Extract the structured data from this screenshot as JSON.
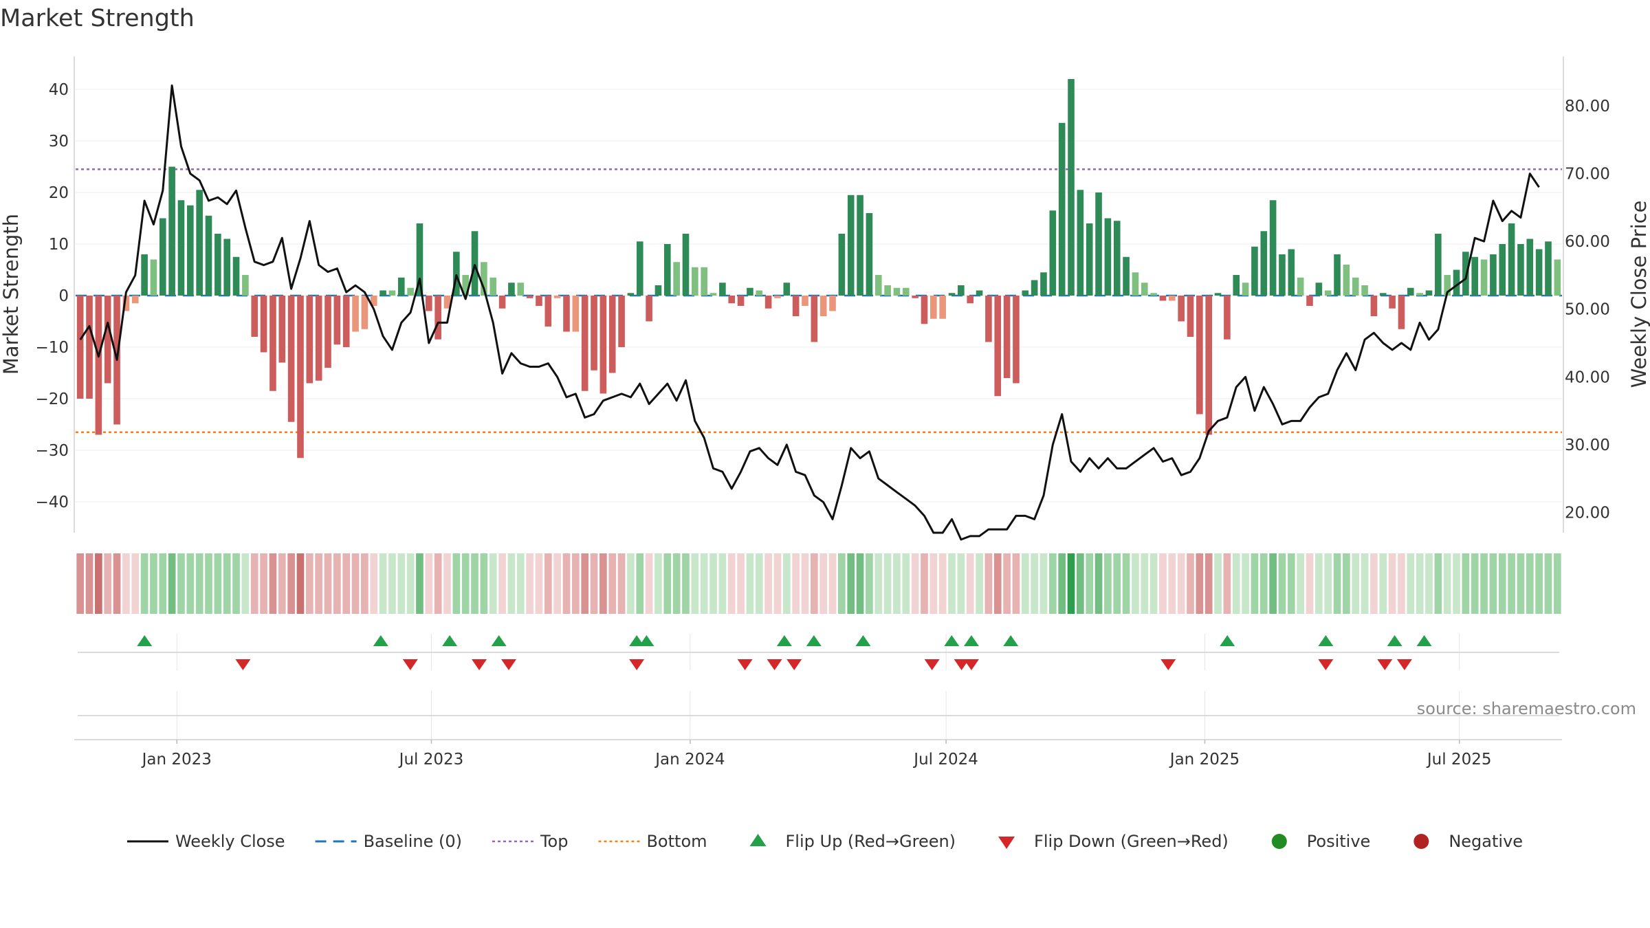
{
  "chart_data": {
    "type": "bar",
    "title": "Market Strength",
    "ylabel_left": "Market Strength",
    "ylabel_right": "Weekly Close Price",
    "left_ylim": [
      -46,
      46
    ],
    "right_ylim": [
      17,
      87
    ],
    "left_ticks": [
      40,
      30,
      20,
      10,
      0,
      -10,
      -20,
      -30,
      -40
    ],
    "left_tick_labels": [
      "40",
      "30",
      "20",
      "10",
      "0",
      "−10",
      "−20",
      "−30",
      "−40"
    ],
    "right_ticks": [
      80,
      70,
      60,
      50,
      40,
      30,
      20
    ],
    "right_tick_labels": [
      "80.00",
      "70.00",
      "60.00",
      "50.00",
      "40.00",
      "30.00",
      "20.00"
    ],
    "x_start": "2022-10-21",
    "x_end": "2025-09-12",
    "x_ticks": [
      {
        "date": "2023-01-01",
        "label": "Jan 2023"
      },
      {
        "date": "2023-07-01",
        "label": "Jul 2023"
      },
      {
        "date": "2024-01-01",
        "label": "Jan 2024"
      },
      {
        "date": "2024-07-01",
        "label": "Jul 2024"
      },
      {
        "date": "2025-01-01",
        "label": "Jan 2025"
      },
      {
        "date": "2025-07-01",
        "label": "Jul 2025"
      }
    ],
    "top_level": 24.5,
    "bottom_level": -26.5,
    "baseline": 0,
    "strength": [
      -20,
      -20,
      -27,
      -17,
      -25,
      -3,
      -1.5,
      8,
      7,
      15,
      25,
      18.5,
      17.5,
      20.5,
      15.5,
      12,
      11,
      7.5,
      4,
      -8,
      -11,
      -18.5,
      -13,
      -24.5,
      -31.5,
      -17,
      -16.5,
      -14,
      -9.5,
      -10,
      -7,
      -6.5,
      -2,
      1,
      1,
      3.5,
      1.5,
      14,
      -3,
      -8.5,
      -2.5,
      8.5,
      4,
      12.5,
      6.5,
      3.5,
      -2.5,
      2.5,
      2.5,
      -0.5,
      -2,
      -6,
      -0.5,
      -7,
      -7,
      -18.5,
      -14.5,
      -19,
      -15,
      -10,
      0.5,
      10.5,
      -5,
      2,
      10,
      6.5,
      12,
      5.5,
      5.5,
      0.5,
      2.5,
      -1.5,
      -2,
      1.5,
      1,
      -2.5,
      -0.5,
      2.5,
      -4,
      -2,
      -9,
      -4,
      -3,
      12,
      19.5,
      19.5,
      16,
      4,
      2,
      1.5,
      1.5,
      -0.5,
      -5.5,
      -4.5,
      -4.5,
      0.5,
      2,
      -1.5,
      1,
      -9,
      -19.5,
      -16,
      -17,
      1,
      3,
      4.5,
      16.5,
      33.5,
      42,
      20.5,
      14,
      20,
      15,
      14.5,
      7.5,
      4.5,
      2.5,
      0.5,
      -1,
      -1,
      -5,
      -8,
      -23,
      -27,
      0.5,
      -8.5,
      4,
      2.5,
      9.5,
      12.5,
      18.5,
      8,
      9,
      3.5,
      -2,
      2.5,
      1,
      8,
      6,
      3.5,
      2,
      -4,
      0.5,
      -2.5,
      -6.5,
      1.5,
      0.5,
      1,
      12,
      4,
      5,
      8.5,
      7.5,
      7,
      8,
      10,
      14,
      10,
      11,
      9,
      10.5,
      7
    ],
    "close": [
      45.5,
      47.5,
      43,
      48,
      42.5,
      52.5,
      55,
      66,
      62.5,
      67.5,
      83,
      74,
      70,
      69,
      66,
      66.5,
      65.5,
      67.5,
      62,
      57,
      56.5,
      57,
      60.5,
      53,
      57.5,
      63,
      56.5,
      55.5,
      56,
      52.5,
      53.5,
      52.5,
      50,
      46,
      44,
      48,
      49.5,
      54.5,
      45,
      48,
      48,
      55,
      51.5,
      56.5,
      53,
      48,
      40.5,
      43.5,
      42,
      41.5,
      41.5,
      42,
      40,
      37,
      37.5,
      34,
      34.5,
      36.5,
      37,
      37.5,
      37,
      39,
      36,
      37.5,
      39,
      36.5,
      39.5,
      33.5,
      31,
      26.5,
      26,
      23.5,
      26,
      29,
      29.5,
      28,
      27,
      30,
      26,
      25.5,
      22.5,
      21.5,
      19,
      24,
      29.5,
      28,
      29,
      25,
      24,
      23,
      22,
      21,
      19.5,
      17,
      17,
      19,
      16,
      16.5,
      16.5,
      17.5,
      17.5,
      17.5,
      19.5,
      19.5,
      19,
      22.5,
      30,
      34.5,
      27.5,
      26,
      28,
      26.5,
      28,
      26.5,
      26.5,
      27.5,
      28.5,
      29.5,
      27.5,
      28,
      25.5,
      26,
      28,
      32,
      33.5,
      34,
      38.5,
      40,
      35,
      38.5,
      36,
      33,
      33.5,
      33.5,
      35.5,
      37,
      37.5,
      41,
      43.5,
      41,
      45.5,
      46.5,
      45,
      44,
      45,
      44,
      48,
      45.5,
      47,
      52.5,
      53.5,
      54.5,
      60.5,
      60,
      66,
      63,
      64.5,
      63.5,
      70,
      68
    ],
    "heat_cells": [
      -3,
      -3,
      -4,
      -2,
      -3,
      -1,
      -1,
      2,
      2,
      2,
      3,
      2,
      2,
      2,
      2,
      2,
      2,
      2,
      1,
      -2,
      -2,
      -3,
      -2,
      -3,
      -4,
      -2,
      -2,
      -2,
      -2,
      -2,
      -2,
      -2,
      -1,
      1,
      1,
      1,
      1,
      3,
      -1,
      -2,
      -1,
      2,
      2,
      2,
      2,
      1,
      -1,
      1,
      1,
      -1,
      -1,
      -2,
      -1,
      -2,
      -2,
      -3,
      -2,
      -3,
      -2,
      -2,
      1,
      2,
      -1,
      1,
      2,
      2,
      2,
      1,
      1,
      1,
      1,
      -1,
      -1,
      1,
      1,
      -1,
      -1,
      1,
      -1,
      -1,
      -2,
      -1,
      -1,
      2,
      3,
      3,
      2,
      1,
      1,
      1,
      1,
      -1,
      -2,
      -1,
      -1,
      1,
      1,
      -1,
      1,
      -2,
      -3,
      -2,
      -2,
      1,
      1,
      1,
      2,
      3,
      4,
      3,
      2,
      3,
      2,
      2,
      2,
      1,
      1,
      1,
      -1,
      -1,
      -1,
      -2,
      -3,
      -3,
      1,
      -2,
      1,
      1,
      2,
      2,
      3,
      2,
      2,
      1,
      -1,
      1,
      1,
      2,
      2,
      1,
      1,
      -1,
      1,
      -1,
      -1,
      1,
      1,
      1,
      2,
      1,
      1,
      2,
      2,
      2,
      2,
      2,
      2,
      2,
      2,
      2,
      2,
      2
    ],
    "flip_up_dates": [
      "2022-12-09",
      "2023-05-26",
      "2023-07-14",
      "2023-08-18",
      "2023-11-24",
      "2023-12-01",
      "2024-03-08",
      "2024-03-29",
      "2024-05-03",
      "2024-07-05",
      "2024-07-19",
      "2024-08-16",
      "2025-01-17",
      "2025-03-28",
      "2025-05-16",
      "2025-06-06"
    ],
    "flip_down_dates": [
      "2023-02-17",
      "2023-06-16",
      "2023-08-04",
      "2023-08-25",
      "2023-11-24",
      "2024-02-09",
      "2024-03-01",
      "2024-03-15",
      "2024-06-21",
      "2024-07-12",
      "2024-07-19",
      "2024-12-06",
      "2025-03-28",
      "2025-05-09",
      "2025-05-23"
    ],
    "legend": [
      {
        "label": "Weekly Close",
        "symbol": "line",
        "color": "#111111"
      },
      {
        "label": "Baseline (0)",
        "symbol": "dash",
        "color": "#1f77b4"
      },
      {
        "label": "Top",
        "symbol": "dot",
        "color": "#9467bd"
      },
      {
        "label": "Bottom",
        "symbol": "dot",
        "color": "#ff7f0e"
      },
      {
        "label": "Flip Up (Red→Green)",
        "symbol": "triangle-up",
        "color": "#22a04a"
      },
      {
        "label": "Flip Down (Green→Red)",
        "symbol": "triangle-down",
        "color": "#d62728"
      },
      {
        "label": "Positive",
        "symbol": "circle",
        "color": "#228b22"
      },
      {
        "label": "Negative",
        "symbol": "circle",
        "color": "#b22222"
      }
    ],
    "legend_placement": "bottom",
    "grid": true
  },
  "source": "source: sharemaestro.com",
  "colors": {
    "strong_green": "#2e8b57",
    "light_green": "#7fbf7f",
    "strong_red": "#cd5c5c",
    "light_red": "#e9967a",
    "close_line": "#111111",
    "top_line": "#9467bd",
    "bottom_line": "#ff7f0e",
    "baseline": "#1f77b4"
  }
}
